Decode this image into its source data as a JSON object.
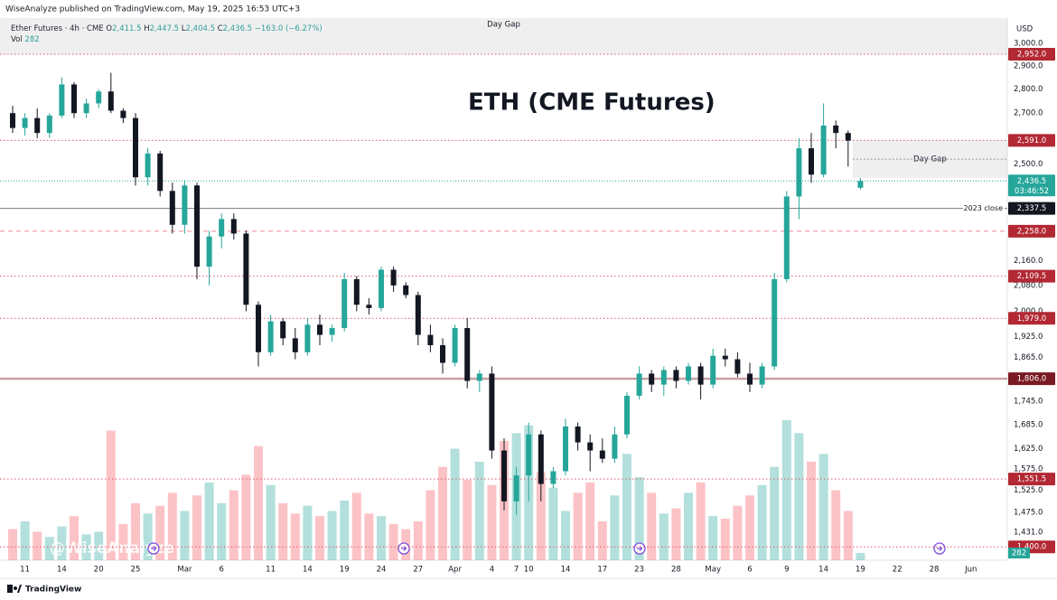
{
  "chart_data": {
    "type": "candlestick",
    "published": "WiseAnalyze published on TradingView.com, May 19, 2025 16:53 UTC+3",
    "symbol": "Ether Futures · 4h · CME",
    "ohlc_legend": [
      {
        "key": "O",
        "value": "2,411.5"
      },
      {
        "key": "H",
        "value": "2,447.5"
      },
      {
        "key": "L",
        "value": "2,404.5"
      },
      {
        "key": "C",
        "value": "2,436.5"
      }
    ],
    "change": "−163.0 (−6.27%)",
    "vol_key": "Vol",
    "vol_value": "282",
    "title": "ETH (CME Futures)",
    "currency": "USD",
    "watermark": "@WiseAnalyze",
    "footer": "TradingView",
    "log_scale": true,
    "up_color": "#26a69a",
    "down_color": "#131722",
    "vol_up_color": "#26a69a",
    "vol_down_color": "#f7525f",
    "ylim": [
      1372,
      3118
    ],
    "yticks": [
      {
        "value": 3000,
        "label": "3,000.0"
      },
      {
        "value": 2900,
        "label": "2,900.0"
      },
      {
        "value": 2800,
        "label": "2,800.0"
      },
      {
        "value": 2700,
        "label": "2,700.0"
      },
      {
        "value": 2500,
        "label": "2,500.0"
      },
      {
        "value": 2160,
        "label": "2,160.0"
      },
      {
        "value": 2080,
        "label": "2,080.0"
      },
      {
        "value": 2000,
        "label": "2,000.0"
      },
      {
        "value": 1925,
        "label": "1,925.0"
      },
      {
        "value": 1865,
        "label": "1,865.0"
      },
      {
        "value": 1745,
        "label": "1,745.0"
      },
      {
        "value": 1685,
        "label": "1,685.0"
      },
      {
        "value": 1625,
        "label": "1,625.0"
      },
      {
        "value": 1575,
        "label": "1,575.0"
      },
      {
        "value": 1525,
        "label": "1,525.0"
      },
      {
        "value": 1475,
        "label": "1,475.0"
      },
      {
        "value": 1431,
        "label": "1,431.0"
      }
    ],
    "categories": [
      null,
      "11",
      null,
      null,
      "14",
      null,
      null,
      "20",
      null,
      null,
      "25",
      null,
      null,
      null,
      "Mar",
      null,
      null,
      "6",
      null,
      null,
      null,
      "11",
      null,
      null,
      "14",
      null,
      null,
      "19",
      null,
      null,
      "24",
      null,
      null,
      "27",
      null,
      null,
      "Apr",
      null,
      null,
      "4",
      null,
      "7",
      "10",
      null,
      null,
      "14",
      null,
      null,
      "17",
      null,
      null,
      "23",
      null,
      null,
      "28",
      null,
      null,
      "May",
      null,
      null,
      "6",
      null,
      null,
      "9",
      null,
      null,
      "14",
      null,
      null,
      "19"
    ],
    "future_labels": [
      "22",
      "28",
      "Jun"
    ],
    "open": [
      2700,
      2640,
      2680,
      2620,
      2690,
      2820,
      2700,
      2740,
      2790,
      2710,
      2680,
      2450,
      2540,
      2400,
      2280,
      2420,
      2140,
      2240,
      2300,
      2250,
      2020,
      1880,
      1970,
      1920,
      1880,
      1960,
      1930,
      1950,
      2100,
      2020,
      2010,
      2130,
      2080,
      2050,
      1930,
      1900,
      1850,
      1950,
      1800,
      1820,
      1620,
      1500,
      1560,
      1660,
      1540,
      1570,
      1680,
      1640,
      1620,
      1600,
      1660,
      1760,
      1820,
      1790,
      1830,
      1800,
      1840,
      1790,
      1870,
      1860,
      1820,
      1790,
      1840,
      2100,
      2380,
      2560,
      2460,
      2650,
      2620,
      2411.5
    ],
    "high": [
      2730,
      2700,
      2720,
      2700,
      2850,
      2830,
      2760,
      2800,
      2870,
      2720,
      2700,
      2560,
      2550,
      2430,
      2440,
      2430,
      2260,
      2320,
      2320,
      2260,
      2030,
      1990,
      1980,
      1950,
      1980,
      1990,
      1960,
      2120,
      2110,
      2040,
      2140,
      2140,
      2090,
      2060,
      1960,
      1920,
      1960,
      1980,
      1830,
      1840,
      1650,
      1580,
      1690,
      1670,
      1580,
      1700,
      1690,
      1660,
      1650,
      1680,
      1770,
      1840,
      1830,
      1840,
      1840,
      1850,
      1850,
      1890,
      1890,
      1880,
      1850,
      1850,
      2120,
      2400,
      2600,
      2620,
      2740,
      2670,
      2630,
      2447.5
    ],
    "low": [
      2620,
      2610,
      2600,
      2600,
      2680,
      2680,
      2680,
      2720,
      2700,
      2660,
      2420,
      2420,
      2380,
      2250,
      2250,
      2100,
      2080,
      2200,
      2230,
      2000,
      1840,
      1870,
      1900,
      1860,
      1870,
      1900,
      1910,
      1940,
      2000,
      1990,
      2000,
      2060,
      2040,
      1900,
      1880,
      1820,
      1840,
      1780,
      1770,
      1600,
      1480,
      1470,
      1500,
      1500,
      1530,
      1560,
      1620,
      1570,
      1590,
      1590,
      1650,
      1750,
      1770,
      1760,
      1780,
      1790,
      1750,
      1780,
      1840,
      1810,
      1770,
      1780,
      1830,
      2090,
      2300,
      2430,
      2450,
      2560,
      2490,
      2404.5
    ],
    "close": [
      2640,
      2680,
      2620,
      2690,
      2820,
      2700,
      2740,
      2790,
      2710,
      2680,
      2450,
      2540,
      2400,
      2280,
      2420,
      2140,
      2240,
      2300,
      2250,
      2020,
      1880,
      1970,
      1920,
      1880,
      1960,
      1930,
      1950,
      2100,
      2020,
      2010,
      2130,
      2080,
      2050,
      1930,
      1900,
      1850,
      1950,
      1800,
      1820,
      1620,
      1500,
      1560,
      1660,
      1540,
      1570,
      1680,
      1640,
      1620,
      1600,
      1660,
      1760,
      1820,
      1790,
      1830,
      1800,
      1840,
      1790,
      1870,
      1860,
      1820,
      1790,
      1840,
      2100,
      2380,
      2560,
      2460,
      2650,
      2620,
      2590,
      2436.5
    ],
    "volume": [
      1200,
      1500,
      1100,
      900,
      1300,
      1700,
      1000,
      1100,
      5000,
      1400,
      2200,
      1800,
      2100,
      2600,
      1900,
      2500,
      3000,
      2200,
      2700,
      3300,
      4400,
      2900,
      2200,
      1800,
      2100,
      1700,
      1900,
      2300,
      2600,
      1800,
      1700,
      1400,
      1200,
      1500,
      2700,
      3600,
      4300,
      3100,
      3800,
      2900,
      4600,
      4900,
      5200,
      3400,
      2800,
      1900,
      2600,
      3000,
      1500,
      2500,
      4100,
      3200,
      2600,
      1800,
      2000,
      2600,
      3000,
      1700,
      1600,
      2100,
      2500,
      2900,
      3600,
      5400,
      4900,
      3800,
      4100,
      2700,
      1900,
      282
    ],
    "levels": [
      {
        "value": 2952,
        "label": "2,952.0",
        "color": "#e05c6a",
        "style": "dotted",
        "box": "#b22833"
      },
      {
        "value": 2591,
        "label": "2,591.0",
        "color": "#e05c6a",
        "style": "dotted",
        "box": "#b22833"
      },
      {
        "value": 2337.5,
        "label": "2,337.5",
        "color": "#787b86",
        "style": "solid",
        "box": "#131722",
        "note": "2023 close"
      },
      {
        "value": 2258,
        "label": "2,258.0",
        "color": "#f28b93",
        "style": "dashed",
        "box": "#b22833"
      },
      {
        "value": 2109.5,
        "label": "2,109.5",
        "color": "#e05c6a",
        "style": "dotted",
        "box": "#b22833"
      },
      {
        "value": 1979,
        "label": "1,979.0",
        "color": "#e05c6a",
        "style": "dotted",
        "box": "#b22833"
      },
      {
        "value": 1806,
        "label": "1,806.0",
        "color": "#c9a0a3",
        "style": "thick",
        "box": "#7a1a22"
      },
      {
        "value": 1551.5,
        "label": "1,551.5",
        "color": "#e05c6a",
        "style": "dotted",
        "box": "#b22833"
      },
      {
        "value": 1400,
        "label": "1,400.0",
        "color": "#e05c6a",
        "style": "dotted",
        "box": "#b22833"
      }
    ],
    "last_price": {
      "value": 2436.5,
      "label": "2,436.5",
      "countdown": "03:46:52",
      "color": "#26a69a"
    },
    "gaps": [
      {
        "label": "Day Gap",
        "from": 2952,
        "to": 3118,
        "start": 0
      },
      {
        "label": "Day Gap",
        "from": 2447.5,
        "to": 2591,
        "start": 68
      }
    ]
  }
}
